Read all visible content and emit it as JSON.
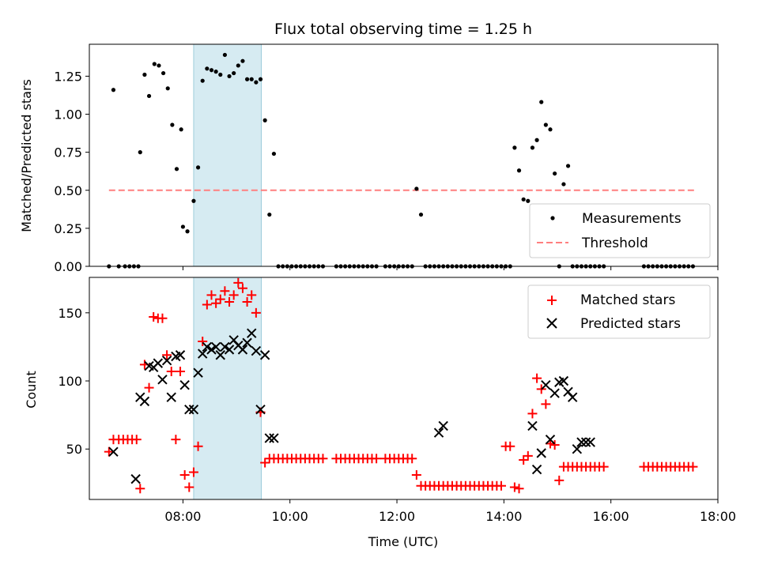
{
  "figure": {
    "title": "Flux total observing time = 1.25 h",
    "xlabel": "Time (UTC)",
    "x_ticks": [
      "08:00",
      "10:00",
      "12:00",
      "14:00",
      "16:00",
      "18:00"
    ]
  },
  "chart_data": [
    {
      "type": "scatter",
      "ylabel": "Matched/Predicted stars",
      "xlim": [
        "06:15",
        "18:00"
      ],
      "ylim": [
        0,
        1.46
      ],
      "y_ticks": [
        "0.00",
        "0.25",
        "0.50",
        "0.75",
        "1.00",
        "1.25"
      ],
      "legend_position": "lower-right",
      "shaded_interval": [
        "08:12",
        "09:28"
      ],
      "threshold": {
        "name": "Threshold",
        "value": 0.5,
        "x_range": [
          "06:37",
          "17:35"
        ],
        "color": "#ff7f7f"
      },
      "series": [
        {
          "name": "Measurements",
          "color": "#000000",
          "x": [
            "06:37",
            "06:42",
            "06:48",
            "06:55",
            "07:00",
            "07:05",
            "07:10",
            "07:12",
            "07:17",
            "07:22",
            "07:28",
            "07:33",
            "07:38",
            "07:43",
            "07:48",
            "07:53",
            "07:58",
            "08:00",
            "08:05",
            "08:12",
            "08:17",
            "08:22",
            "08:27",
            "08:32",
            "08:37",
            "08:42",
            "08:47",
            "08:52",
            "08:57",
            "09:02",
            "09:07",
            "09:12",
            "09:17",
            "09:22",
            "09:27",
            "09:32",
            "09:37",
            "09:42",
            "09:47",
            "09:52",
            "09:57",
            "10:02",
            "10:07",
            "10:12",
            "10:17",
            "10:22",
            "10:27",
            "10:32",
            "10:37",
            "10:52",
            "10:57",
            "11:02",
            "11:07",
            "11:12",
            "11:17",
            "11:22",
            "11:27",
            "11:32",
            "11:37",
            "11:47",
            "11:52",
            "11:57",
            "12:02",
            "12:07",
            "12:12",
            "12:17",
            "12:22",
            "12:27",
            "12:32",
            "12:37",
            "12:42",
            "12:47",
            "12:52",
            "12:57",
            "13:02",
            "13:07",
            "13:12",
            "13:17",
            "13:22",
            "13:27",
            "13:32",
            "13:37",
            "13:42",
            "13:47",
            "13:52",
            "13:57",
            "14:02",
            "14:07",
            "14:12",
            "14:17",
            "14:22",
            "14:27",
            "14:32",
            "14:37",
            "14:42",
            "14:47",
            "14:52",
            "14:57",
            "15:02",
            "15:07",
            "15:12",
            "15:17",
            "15:22",
            "15:27",
            "15:32",
            "15:37",
            "15:42",
            "15:47",
            "15:52",
            "16:37",
            "16:42",
            "16:47",
            "16:52",
            "16:57",
            "17:02",
            "17:07",
            "17:12",
            "17:17",
            "17:22",
            "17:27",
            "17:32"
          ],
          "y": [
            0.0,
            1.16,
            0.0,
            0.0,
            0.0,
            0.0,
            0.0,
            0.75,
            1.26,
            1.12,
            1.33,
            1.32,
            1.27,
            1.17,
            0.93,
            0.64,
            0.9,
            0.26,
            0.23,
            0.43,
            0.65,
            1.22,
            1.3,
            1.29,
            1.28,
            1.26,
            1.39,
            1.25,
            1.27,
            1.32,
            1.35,
            1.23,
            1.23,
            1.21,
            1.23,
            0.96,
            0.34,
            0.74,
            0.0,
            0.0,
            0.0,
            0.0,
            0.0,
            0.0,
            0.0,
            0.0,
            0.0,
            0.0,
            0.0,
            0.0,
            0.0,
            0.0,
            0.0,
            0.0,
            0.0,
            0.0,
            0.0,
            0.0,
            0.0,
            0.0,
            0.0,
            0.0,
            0.0,
            0.0,
            0.0,
            0.0,
            0.51,
            0.34,
            0.0,
            0.0,
            0.0,
            0.0,
            0.0,
            0.0,
            0.0,
            0.0,
            0.0,
            0.0,
            0.0,
            0.0,
            0.0,
            0.0,
            0.0,
            0.0,
            0.0,
            0.0,
            0.0,
            0.0,
            0.78,
            0.63,
            0.44,
            0.43,
            0.78,
            0.83,
            1.08,
            0.93,
            0.9,
            0.61,
            0.0,
            0.54,
            0.66,
            0.0,
            0.0,
            0.0,
            0.0,
            0.0,
            0.0,
            0.0,
            0.0,
            0.0,
            0.0,
            0.0,
            0.0,
            0.0,
            0.0,
            0.0,
            0.0,
            0.0,
            0.0,
            0.0,
            0.0
          ]
        }
      ]
    },
    {
      "type": "scatter",
      "ylabel": "Count",
      "xlim": [
        "06:15",
        "18:00"
      ],
      "ylim": [
        13,
        176
      ],
      "y_ticks": [
        "50",
        "100",
        "150"
      ],
      "legend_position": "upper-right",
      "shaded_interval": [
        "08:12",
        "09:28"
      ],
      "series": [
        {
          "name": "Matched stars",
          "marker": "plus",
          "color": "#ff0000",
          "x": [
            "06:37",
            "06:42",
            "06:48",
            "06:53",
            "06:58",
            "07:03",
            "07:08",
            "07:12",
            "07:17",
            "07:22",
            "07:27",
            "07:32",
            "07:37",
            "07:42",
            "07:47",
            "07:52",
            "07:57",
            "08:02",
            "08:07",
            "08:12",
            "08:17",
            "08:22",
            "08:27",
            "08:32",
            "08:37",
            "08:42",
            "08:47",
            "08:52",
            "08:57",
            "09:02",
            "09:07",
            "09:12",
            "09:17",
            "09:22",
            "09:27",
            "09:32",
            "09:37",
            "09:42",
            "09:47",
            "09:52",
            "09:57",
            "10:02",
            "10:07",
            "10:12",
            "10:17",
            "10:22",
            "10:27",
            "10:32",
            "10:37",
            "10:52",
            "10:57",
            "11:02",
            "11:07",
            "11:12",
            "11:17",
            "11:22",
            "11:27",
            "11:32",
            "11:37",
            "11:47",
            "11:52",
            "11:57",
            "12:02",
            "12:07",
            "12:12",
            "12:17",
            "12:22",
            "12:27",
            "12:32",
            "12:37",
            "12:42",
            "12:47",
            "12:52",
            "12:57",
            "13:02",
            "13:07",
            "13:12",
            "13:17",
            "13:22",
            "13:27",
            "13:32",
            "13:37",
            "13:42",
            "13:47",
            "13:52",
            "13:57",
            "14:02",
            "14:07",
            "14:12",
            "14:17",
            "14:22",
            "14:27",
            "14:32",
            "14:37",
            "14:42",
            "14:47",
            "14:52",
            "14:57",
            "15:02",
            "15:07",
            "15:12",
            "15:17",
            "15:22",
            "15:27",
            "15:32",
            "15:37",
            "15:42",
            "15:47",
            "15:52",
            "16:37",
            "16:42",
            "16:47",
            "16:52",
            "16:57",
            "17:02",
            "17:07",
            "17:12",
            "17:17",
            "17:22",
            "17:27",
            "17:32"
          ],
          "y": [
            48,
            57,
            57,
            57,
            57,
            57,
            57,
            21,
            112,
            95,
            147,
            146,
            146,
            119,
            107,
            57,
            107,
            31,
            22,
            33,
            52,
            129,
            156,
            163,
            157,
            160,
            166,
            158,
            163,
            172,
            168,
            158,
            163,
            150,
            77,
            40,
            43,
            43,
            43,
            43,
            43,
            43,
            43,
            43,
            43,
            43,
            43,
            43,
            43,
            43,
            43,
            43,
            43,
            43,
            43,
            43,
            43,
            43,
            43,
            43,
            43,
            43,
            43,
            43,
            43,
            43,
            31,
            23,
            23,
            23,
            23,
            23,
            23,
            23,
            23,
            23,
            23,
            23,
            23,
            23,
            23,
            23,
            23,
            23,
            23,
            23,
            52,
            52,
            22,
            21,
            42,
            45,
            76,
            102,
            94,
            83,
            54,
            53,
            27,
            37,
            37,
            37,
            37,
            37,
            37,
            37,
            37,
            37,
            37,
            37,
            37,
            37,
            37,
            37,
            37,
            37,
            37,
            37,
            37,
            37,
            37
          ]
        },
        {
          "name": "Predicted stars",
          "marker": "x",
          "color": "#000000",
          "x": [
            "06:42",
            "07:07",
            "07:12",
            "07:17",
            "07:22",
            "07:27",
            "07:32",
            "07:37",
            "07:42",
            "07:47",
            "07:52",
            "07:57",
            "08:02",
            "08:07",
            "08:12",
            "08:17",
            "08:22",
            "08:27",
            "08:32",
            "08:37",
            "08:42",
            "08:47",
            "08:52",
            "08:57",
            "09:02",
            "09:07",
            "09:12",
            "09:17",
            "09:22",
            "09:27",
            "09:32",
            "09:37",
            "09:42",
            "12:47",
            "12:52",
            "14:32",
            "14:37",
            "14:42",
            "14:47",
            "14:52",
            "14:57",
            "15:02",
            "15:07",
            "15:12",
            "15:17",
            "15:22",
            "15:27",
            "15:32",
            "15:37"
          ],
          "y": [
            48,
            28,
            88,
            85,
            111,
            110,
            113,
            101,
            115,
            88,
            118,
            119,
            97,
            79,
            79,
            106,
            120,
            125,
            123,
            125,
            119,
            125,
            123,
            130,
            126,
            123,
            128,
            135,
            122,
            79,
            119,
            58,
            58,
            62,
            67,
            67,
            35,
            47,
            97,
            57,
            91,
            99,
            100,
            92,
            88,
            50,
            55,
            55,
            55
          ]
        }
      ]
    }
  ]
}
